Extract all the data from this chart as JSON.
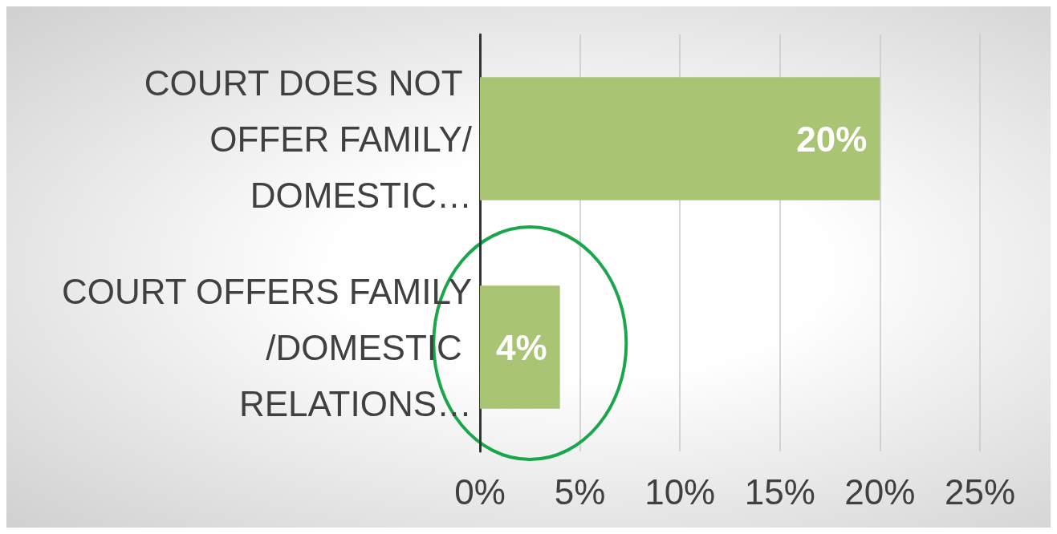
{
  "chart_data": {
    "type": "bar",
    "orientation": "horizontal",
    "categories": [
      "COURT DOES NOT OFFER FAMILY/DOMESTIC…",
      "COURT OFFERS FAMILY/DOMESTIC RELATIONS…"
    ],
    "values": [
      20,
      4
    ],
    "color": "#a9c574",
    "value_labels": [
      "20%",
      "4%"
    ],
    "xlim": [
      0,
      25
    ],
    "xticks": [
      {
        "value": 0,
        "label": "0%"
      },
      {
        "value": 5,
        "label": "5%"
      },
      {
        "value": 10,
        "label": "10%"
      },
      {
        "value": 15,
        "label": "15%"
      },
      {
        "value": 20,
        "label": "20%"
      },
      {
        "value": 25,
        "label": "25%"
      }
    ],
    "grid": "x"
  }
}
